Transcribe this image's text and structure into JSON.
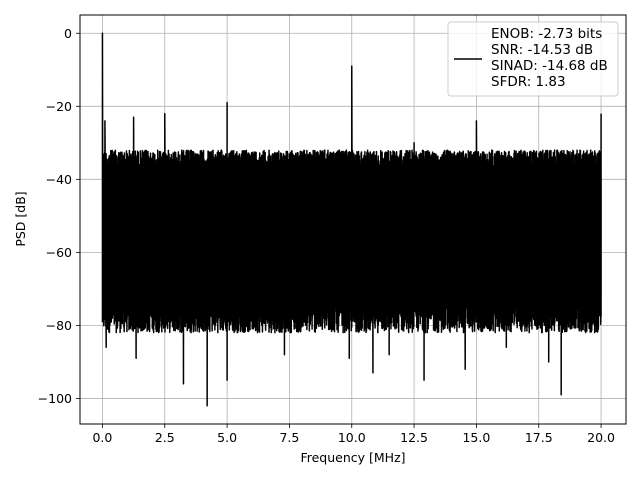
{
  "chart_data": {
    "type": "line",
    "title": "",
    "xlabel": "Frequency [MHz]",
    "ylabel": "PSD [dB]",
    "xlim": [
      -0.9,
      21.0
    ],
    "ylim": [
      -107,
      5
    ],
    "xticks": [
      0.0,
      2.5,
      5.0,
      7.5,
      10.0,
      12.5,
      15.0,
      17.5,
      20.0
    ],
    "xtick_labels": [
      "0.0",
      "2.5",
      "5.0",
      "7.5",
      "10.0",
      "12.5",
      "15.0",
      "17.5",
      "20.0"
    ],
    "yticks": [
      0,
      -20,
      -40,
      -60,
      -80,
      -100
    ],
    "ytick_labels": [
      "0",
      "−20",
      "−40",
      "−60",
      "−80",
      "−100"
    ],
    "grid": true,
    "legend_position": "top-right",
    "series": [
      {
        "name": "ENOB: -2.73 bits\nSNR: -14.53 dB\nSINAD: -14.68 dB\nSFDR: 1.83",
        "legend_lines": [
          "ENOB: -2.73 bits",
          "SNR: -14.53 dB",
          "SINAD: -14.68 dB",
          "SFDR: 1.83"
        ],
        "color": "#000000",
        "x_range": [
          0.0,
          20.0
        ],
        "noise_floor_top": -32,
        "noise_floor_bottom": -80,
        "spikes": [
          {
            "x": 0.0,
            "y": 0
          },
          {
            "x": 0.1,
            "y": -24
          },
          {
            "x": 1.25,
            "y": -23
          },
          {
            "x": 2.5,
            "y": -22
          },
          {
            "x": 5.0,
            "y": -19
          },
          {
            "x": 10.0,
            "y": -9
          },
          {
            "x": 12.5,
            "y": -30
          },
          {
            "x": 15.0,
            "y": -24
          },
          {
            "x": 20.0,
            "y": -22
          }
        ],
        "dips": [
          {
            "x": 0.15,
            "y": -86
          },
          {
            "x": 1.35,
            "y": -89
          },
          {
            "x": 3.25,
            "y": -96
          },
          {
            "x": 4.2,
            "y": -102
          },
          {
            "x": 5.0,
            "y": -95
          },
          {
            "x": 7.3,
            "y": -88
          },
          {
            "x": 9.9,
            "y": -89
          },
          {
            "x": 10.85,
            "y": -93
          },
          {
            "x": 11.5,
            "y": -88
          },
          {
            "x": 12.9,
            "y": -95
          },
          {
            "x": 14.55,
            "y": -92
          },
          {
            "x": 16.2,
            "y": -86
          },
          {
            "x": 17.9,
            "y": -90
          },
          {
            "x": 18.4,
            "y": -99
          }
        ]
      }
    ]
  }
}
